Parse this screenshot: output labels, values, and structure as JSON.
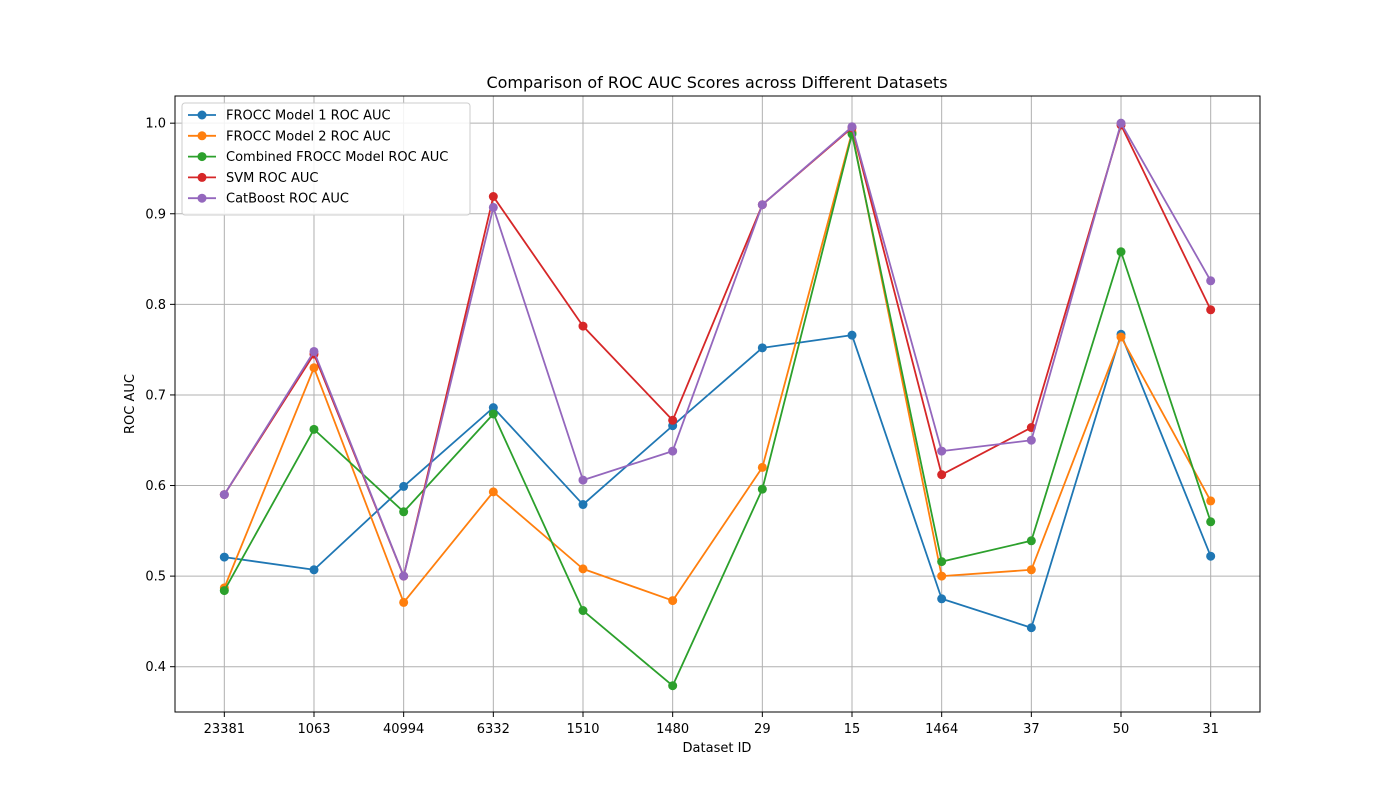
{
  "chart_data": {
    "type": "line",
    "title": "Comparison of ROC AUC Scores across Different Datasets",
    "xlabel": "Dataset ID",
    "ylabel": "ROC AUC",
    "categories": [
      "23381",
      "1063",
      "40994",
      "6332",
      "1510",
      "1480",
      "29",
      "15",
      "1464",
      "37",
      "50",
      "31"
    ],
    "ylim": [
      0.35,
      1.03
    ],
    "yticks": [
      "0.4",
      "0.5",
      "0.6",
      "0.7",
      "0.8",
      "0.9",
      "1.0"
    ],
    "grid": true,
    "legend_position": "top-left",
    "series": [
      {
        "name": "FROCC Model 1 ROC AUC",
        "color": "#1f77b4",
        "values": [
          0.521,
          0.507,
          0.599,
          0.686,
          0.579,
          0.666,
          0.752,
          0.766,
          0.475,
          0.443,
          0.767,
          0.522
        ]
      },
      {
        "name": "FROCC Model 2 ROC AUC",
        "color": "#ff7f0e",
        "values": [
          0.487,
          0.73,
          0.471,
          0.593,
          0.508,
          0.473,
          0.62,
          0.99,
          0.5,
          0.507,
          0.764,
          0.583
        ]
      },
      {
        "name": "Combined FROCC Model ROC AUC",
        "color": "#2ca02c",
        "values": [
          0.484,
          0.662,
          0.571,
          0.679,
          0.462,
          0.379,
          0.596,
          0.988,
          0.516,
          0.539,
          0.858,
          0.56
        ]
      },
      {
        "name": "SVM ROC AUC",
        "color": "#d62728",
        "values": [
          0.59,
          0.745,
          0.5,
          0.919,
          0.776,
          0.672,
          0.91,
          0.995,
          0.612,
          0.664,
          0.998,
          0.794
        ]
      },
      {
        "name": "CatBoost ROC AUC",
        "color": "#9467bd",
        "values": [
          0.59,
          0.748,
          0.5,
          0.907,
          0.606,
          0.638,
          0.91,
          0.996,
          0.638,
          0.65,
          1.0,
          0.826
        ]
      }
    ]
  }
}
